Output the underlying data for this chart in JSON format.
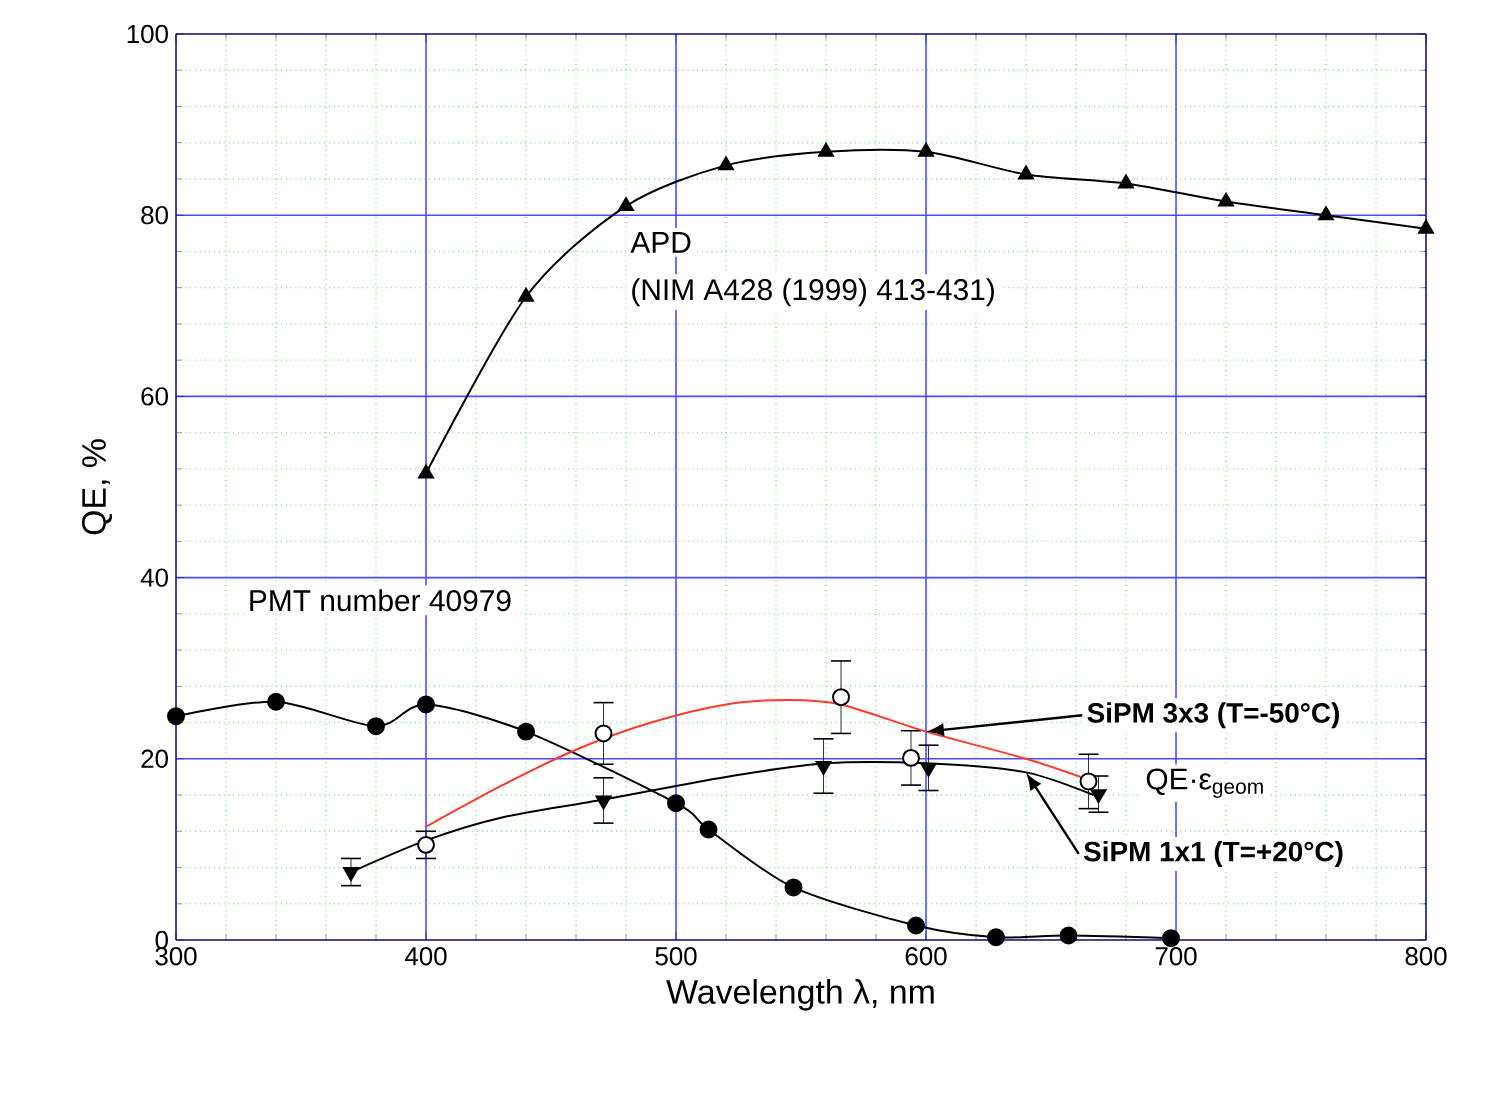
{
  "chart_data": {
    "type": "line",
    "xlabel": "Wavelength λ, nm",
    "ylabel": "QE, %",
    "xlim": [
      300,
      800
    ],
    "ylim": [
      0,
      100
    ],
    "xticks": [
      300,
      {
        "value": 320,
        "label": null
      },
      {
        "value": 340,
        "label": null
      },
      {
        "value": 360,
        "label": null
      },
      {
        "value": 380,
        "label": null
      },
      400,
      {
        "value": 420,
        "label": null
      },
      {
        "value": 440,
        "label": null
      },
      {
        "value": 460,
        "label": null
      },
      {
        "value": 480,
        "label": null
      },
      500,
      {
        "value": 520,
        "label": null
      },
      {
        "value": 540,
        "label": null
      },
      {
        "value": 560,
        "label": null
      },
      {
        "value": 580,
        "label": null
      },
      600,
      {
        "value": 620,
        "label": null
      },
      {
        "value": 640,
        "label": null
      },
      {
        "value": 660,
        "label": null
      },
      {
        "value": 680,
        "label": null
      },
      700,
      {
        "value": 720,
        "label": null
      },
      {
        "value": 740,
        "label": null
      },
      {
        "value": 760,
        "label": null
      },
      {
        "value": 780,
        "label": null
      },
      800
    ],
    "yticks": [
      0,
      {
        "value": 4,
        "label": null
      },
      {
        "value": 8,
        "label": null
      },
      {
        "value": 12,
        "label": null
      },
      {
        "value": 16,
        "label": null
      },
      20,
      {
        "value": 24,
        "label": null
      },
      {
        "value": 28,
        "label": null
      },
      {
        "value": 32,
        "label": null
      },
      {
        "value": 36,
        "label": null
      },
      40,
      {
        "value": 44,
        "label": null
      },
      {
        "value": 48,
        "label": null
      },
      {
        "value": 52,
        "label": null
      },
      {
        "value": 56,
        "label": null
      },
      60,
      {
        "value": 64,
        "label": null
      },
      {
        "value": 68,
        "label": null
      },
      {
        "value": 72,
        "label": null
      },
      {
        "value": 76,
        "label": null
      },
      80,
      {
        "value": 84,
        "label": null
      },
      {
        "value": 88,
        "label": null
      },
      {
        "value": 92,
        "label": null
      },
      {
        "value": 96,
        "label": null
      },
      100
    ],
    "grid": true,
    "legend": "right",
    "annotations": [
      "APD",
      "(NIM A428 (1999) 413-431)",
      "PMT number 40979",
      "QE·ε$_{geom}$"
    ],
    "series": [
      {
        "color": "#000000",
        "marker": "triangle",
        "x": [
          400,
          440,
          480,
          520,
          560,
          600,
          640,
          680,
          720,
          760,
          800
        ],
        "values": [
          51.5,
          71,
          81,
          85.5,
          87,
          87,
          84.5,
          83.5,
          81.5,
          80,
          78.5
        ]
      },
      {
        "color": "#000000",
        "marker": "circle",
        "x": [
          300,
          340,
          380,
          400,
          440,
          500,
          513,
          547,
          596,
          628,
          657,
          698
        ],
        "values": [
          24.7,
          26.3,
          23.6,
          26,
          23,
          15.1,
          12.2,
          5.8,
          1.6,
          0.3,
          0.5,
          0.2
        ]
      },
      {
        "type": "scatter",
        "color": "#000000",
        "marker": "circle",
        "x": [
          400,
          471,
          566,
          594,
          665
        ],
        "values": [
          10.5,
          22.8,
          26.8,
          20.1,
          17.5
        ],
        "errors": [
          1.5,
          3.4,
          4,
          3,
          3
        ]
      },
      {
        "name": "SiPM 3x3 (T=-50°C)",
        "color": "#ff3a2a",
        "marker": "none",
        "x": [
          400,
          430,
          460,
          490,
          520,
          545,
          566,
          600,
          640,
          667
        ],
        "values": [
          12.5,
          17,
          21,
          24,
          26,
          26.5,
          26,
          23,
          20,
          17.5
        ]
      },
      {
        "name": "SiPM 1x1 (T=+20°C)",
        "color": "#000000",
        "marker": "none",
        "x": [
          370,
          400,
          430,
          471,
          520,
          560,
          600,
          640,
          667
        ],
        "values": [
          7.5,
          11,
          13.5,
          15.5,
          18,
          19.5,
          19.5,
          18.5,
          16
        ]
      },
      {
        "type": "scatter",
        "color": "#000000",
        "marker": "triangle-down",
        "x": [
          370,
          471,
          559,
          601,
          669
        ],
        "values": [
          7.5,
          15.4,
          19.2,
          19,
          16.1
        ],
        "errors": [
          1.5,
          2.5,
          3,
          2.5,
          2
        ]
      }
    ]
  }
}
